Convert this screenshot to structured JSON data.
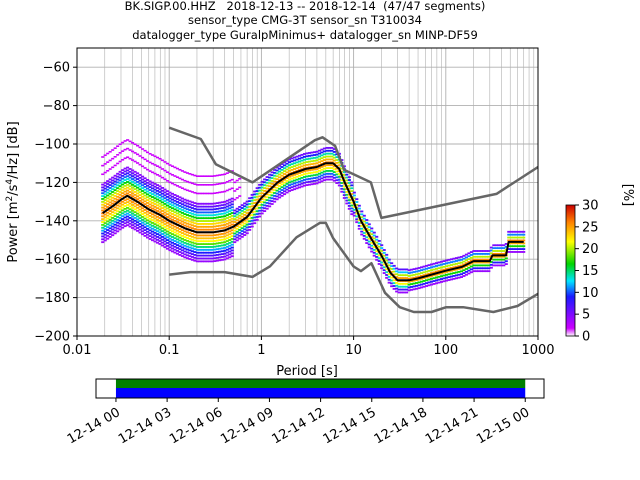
{
  "figure": {
    "title_lines": [
      "BK.SIGP.00.HHZ   2018-12-13 -- 2018-12-14  (47/47 segments)",
      "sensor_type CMG-3T sensor_sn T310034",
      "datalogger_type GuralpMinimus+ datalogger_sn MINP-DF59"
    ]
  },
  "chart_data": [
    {
      "type": "heatmap",
      "title": "BK.SIGP.00.HHZ   2018-12-13 -- 2018-12-14  (47/47 segments)",
      "xlabel": "Period [s]",
      "ylabel": "Power [m²/s⁴/Hz] [dB]",
      "xscale": "log",
      "xlim": [
        0.01,
        1000
      ],
      "ylim": [
        -200,
        -50
      ],
      "x_ticks": [
        "0.01",
        "0.1",
        "1",
        "10",
        "100",
        "1000"
      ],
      "y_ticks": [
        "−200",
        "−180",
        "−160",
        "−140",
        "−120",
        "−100",
        "−80",
        "−60"
      ],
      "grid": true,
      "colorbar": {
        "label": "[%]",
        "range": [
          0,
          30
        ],
        "ticks": [
          "0",
          "5",
          "10",
          "15",
          "20",
          "25",
          "30"
        ],
        "colors": [
          "#ffffff",
          "#cc00ff",
          "#1a1aff",
          "#00e5ff",
          "#00d400",
          "#ffff00",
          "#ff8000",
          "#cc0000"
        ]
      },
      "series": [
        {
          "role": "median_psd",
          "color": "#000000",
          "x": [
            0.019,
            0.025,
            0.03,
            0.035,
            0.045,
            0.06,
            0.08,
            0.1,
            0.15,
            0.2,
            0.3,
            0.4,
            0.5,
            0.7,
            1.0,
            1.5,
            2.0,
            3.0,
            4.0,
            5.0,
            6.0,
            7.0,
            8.0,
            10,
            12,
            15,
            20,
            25,
            30,
            40,
            50,
            70,
            100,
            150,
            200,
            300,
            320,
            450,
            480,
            700
          ],
          "y": [
            -136,
            -132,
            -129,
            -127,
            -130,
            -134,
            -137,
            -140,
            -144,
            -146,
            -146,
            -145,
            -143,
            -138,
            -128,
            -120,
            -116,
            -113,
            -112,
            -110,
            -110,
            -113,
            -120,
            -130,
            -140,
            -148,
            -158,
            -167,
            -171,
            -171,
            -170,
            -168,
            -166,
            -164,
            -161,
            -161,
            -158,
            -158,
            -151,
            -151
          ]
        },
        {
          "role": "noise_model_high",
          "color": "#666666",
          "x": [
            0.1,
            0.22,
            0.32,
            0.8,
            3.8,
            4.6,
            6.3,
            7.9,
            15.4,
            20,
            354.8,
            1000
          ],
          "y": [
            -91.5,
            -97.4,
            -110.5,
            -120,
            -98,
            -96.5,
            -101,
            -113.5,
            -120,
            -138.5,
            -126,
            -112
          ]
        },
        {
          "role": "noise_model_low",
          "color": "#666666",
          "x": [
            0.1,
            0.17,
            0.4,
            0.8,
            1.24,
            2.4,
            4.3,
            5.0,
            6.0,
            10,
            12,
            15.6,
            21.9,
            31.6,
            45,
            70,
            101,
            154,
            328,
            600,
            1000
          ],
          "y": [
            -168,
            -166.7,
            -166.7,
            -169.2,
            -163.7,
            -148.6,
            -141.1,
            -141.1,
            -149,
            -163.8,
            -166.2,
            -162.1,
            -177.5,
            -185,
            -187.5,
            -187.5,
            -185,
            -185,
            -187.5,
            -184.4,
            -178
          ]
        }
      ]
    },
    {
      "type": "bar",
      "role": "data_availability",
      "x_ticks": [
        "12-14 00",
        "12-14 03",
        "12-14 06",
        "12-14 09",
        "12-14 12",
        "12-14 15",
        "12-14 18",
        "12-14 21",
        "12-15 00"
      ],
      "xlim_hours": [
        -1.17,
        25.1
      ],
      "bands": [
        {
          "from_hour": 0,
          "to_hour": 24,
          "color": "#008000"
        },
        {
          "from_hour": 0,
          "to_hour": 24,
          "color": "#0000ff"
        }
      ]
    }
  ]
}
